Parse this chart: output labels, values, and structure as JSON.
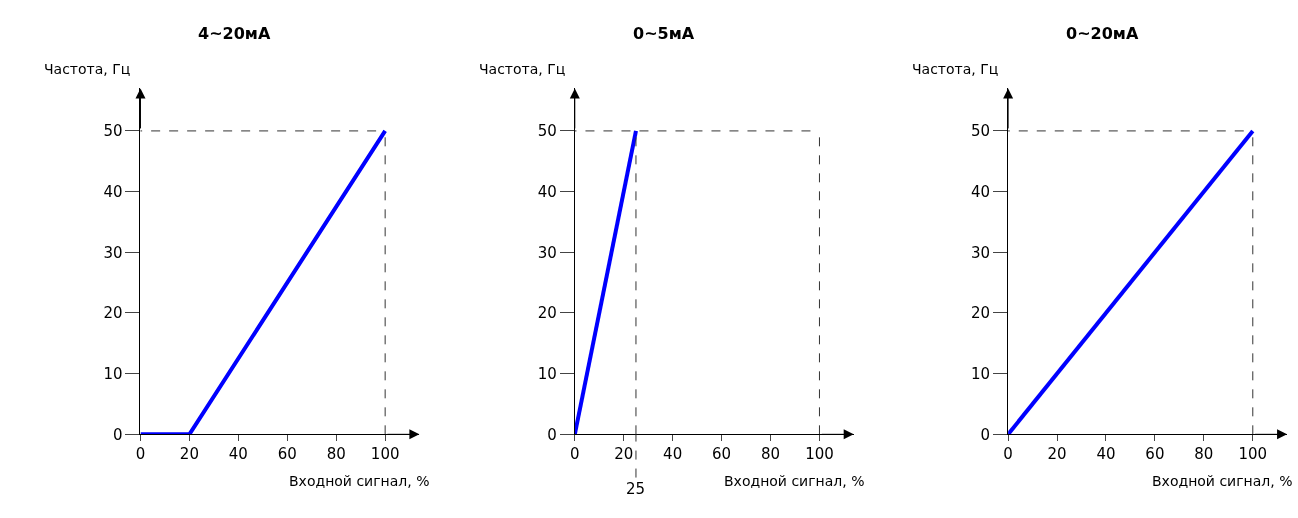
{
  "chart_data": [
    {
      "type": "line",
      "title": "4~20мА",
      "xlabel": "Входной сигнал, %",
      "ylabel": "Частота, Гц",
      "x": [
        0,
        20,
        100
      ],
      "series": [
        {
          "color": "#0000ff",
          "values": [
            0,
            0,
            50
          ]
        }
      ],
      "xlim": [
        0,
        114
      ],
      "ylim": [
        0,
        57
      ],
      "xticks": [
        0,
        20,
        40,
        60,
        80,
        100
      ],
      "yticks": [
        0,
        10,
        20,
        30,
        40,
        50
      ],
      "ref_lines": [
        {
          "axis": "y",
          "value": 50,
          "line_style": "dashed"
        },
        {
          "axis": "x",
          "value": 100,
          "line_style": "dashed"
        }
      ]
    },
    {
      "type": "line",
      "title": "0~5мА",
      "xlabel": "Входной сигнал, %",
      "ylabel": "Частота, Гц",
      "x": [
        0,
        25
      ],
      "series": [
        {
          "color": "#0000ff",
          "values": [
            0,
            50
          ]
        }
      ],
      "xlim": [
        0,
        114
      ],
      "ylim": [
        0,
        57
      ],
      "xticks": [
        0,
        20,
        40,
        60,
        80,
        100
      ],
      "yticks": [
        0,
        10,
        20,
        30,
        40,
        50
      ],
      "ref_lines": [
        {
          "axis": "y",
          "value": 50,
          "line_style": "dashed"
        },
        {
          "axis": "x",
          "value": 100,
          "line_style": "dashed"
        },
        {
          "axis": "x",
          "value": 25,
          "label": "25",
          "line_style": "dashed"
        }
      ]
    },
    {
      "type": "line",
      "title": "0~20мА",
      "xlabel": "Входной сигнал, %",
      "ylabel": "Частота, Гц",
      "x": [
        0,
        100
      ],
      "series": [
        {
          "color": "#0000ff",
          "values": [
            0,
            50
          ]
        }
      ],
      "xlim": [
        0,
        114
      ],
      "ylim": [
        0,
        57
      ],
      "xticks": [
        0,
        20,
        40,
        60,
        80,
        100
      ],
      "yticks": [
        0,
        10,
        20,
        30,
        40,
        50
      ],
      "ref_lines": [
        {
          "axis": "y",
          "value": 50,
          "line_style": "dashed"
        },
        {
          "axis": "x",
          "value": 100,
          "line_style": "dashed"
        }
      ]
    }
  ]
}
